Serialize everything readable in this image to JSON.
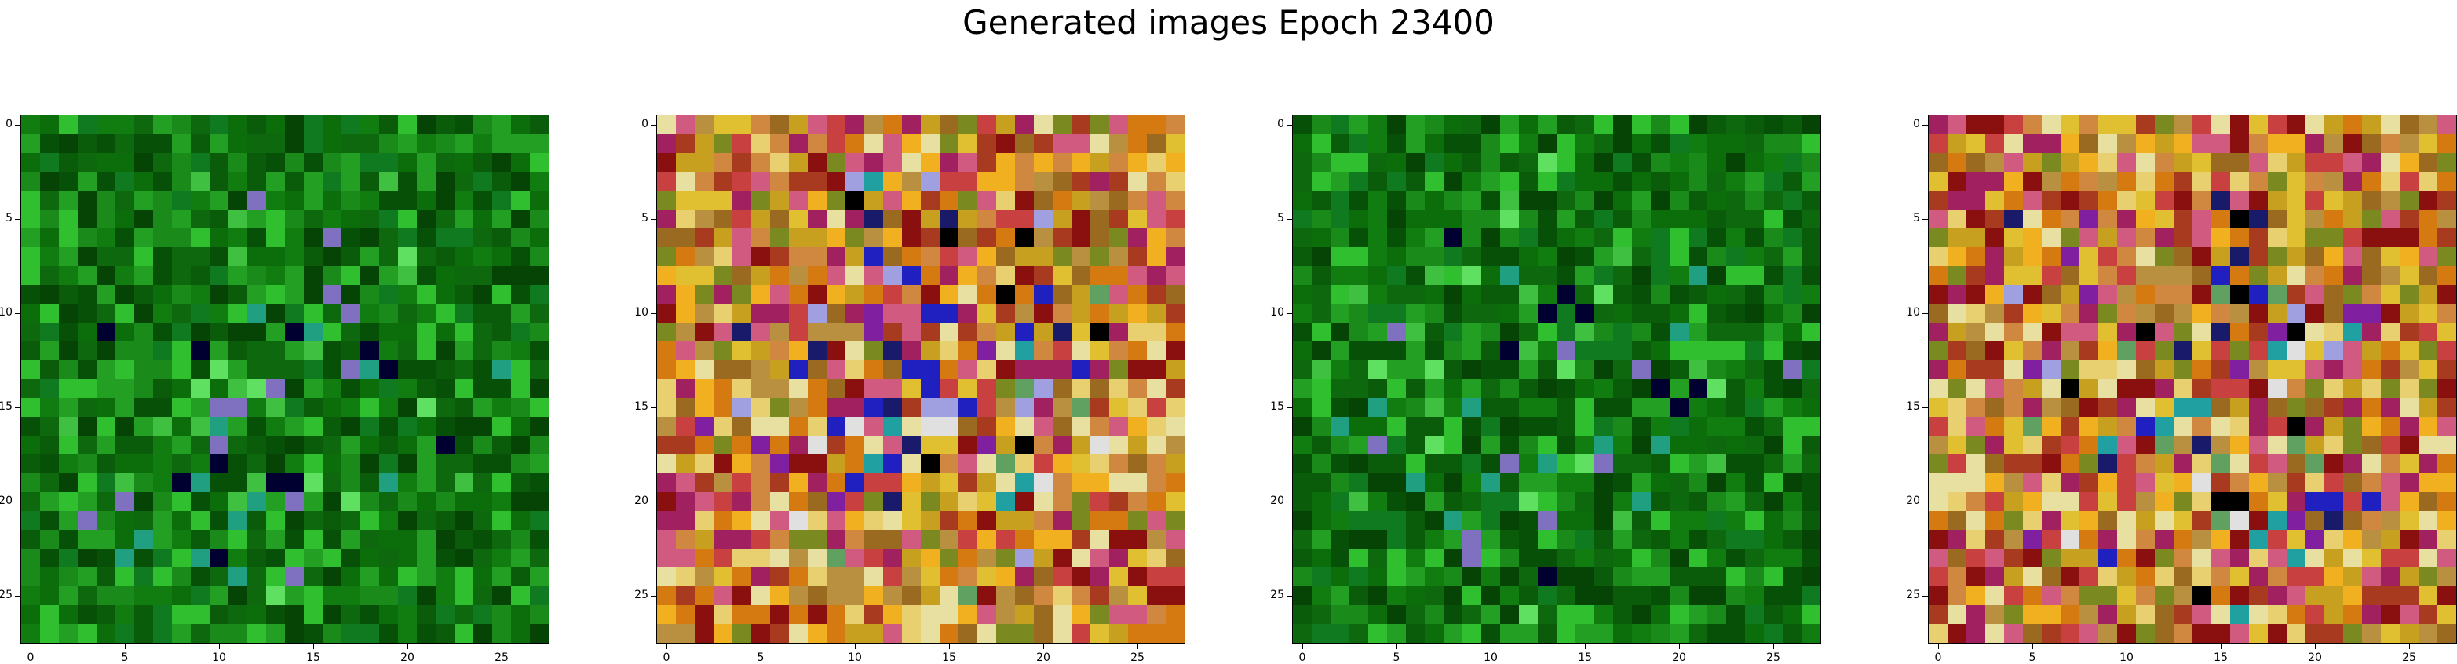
{
  "figure": {
    "title": "Generated images Epoch 23400",
    "image_size": 28,
    "x_ticks": [
      "0",
      "5",
      "10",
      "15",
      "20",
      "25"
    ],
    "y_ticks": [
      "0",
      "5",
      "10",
      "15",
      "20",
      "25"
    ],
    "panels": [
      {
        "name": "generated-image-1",
        "palette": "green",
        "seed": 11
      },
      {
        "name": "generated-image-2",
        "palette": "warm",
        "seed": 29
      },
      {
        "name": "generated-image-3",
        "palette": "green",
        "seed": 47
      },
      {
        "name": "generated-image-4",
        "palette": "warm",
        "seed": 83
      }
    ],
    "colors": {
      "green": [
        "#0b6e0b",
        "#0a5c0a",
        "#117d11",
        "#0e690e",
        "#1a8a1a",
        "#075007",
        "#23a023",
        "#0f7a1f",
        "#2fbf2f",
        "#064406"
      ],
      "warm": [
        "#c8a020",
        "#d47a10",
        "#a83a20",
        "#e0c030",
        "#b89040",
        "#c84040",
        "#e8d070",
        "#9a6a20",
        "#d08840",
        "#f0b020",
        "#8a1010",
        "#d05a80",
        "#a02060",
        "#e8e0a0",
        "#7a8a20"
      ],
      "accent_warm": [
        "#000000",
        "#1a1a6a",
        "#2020c0",
        "#8020a0",
        "#20a0a0",
        "#60a060",
        "#e0e0e0",
        "#a0a0e0"
      ]
    }
  }
}
